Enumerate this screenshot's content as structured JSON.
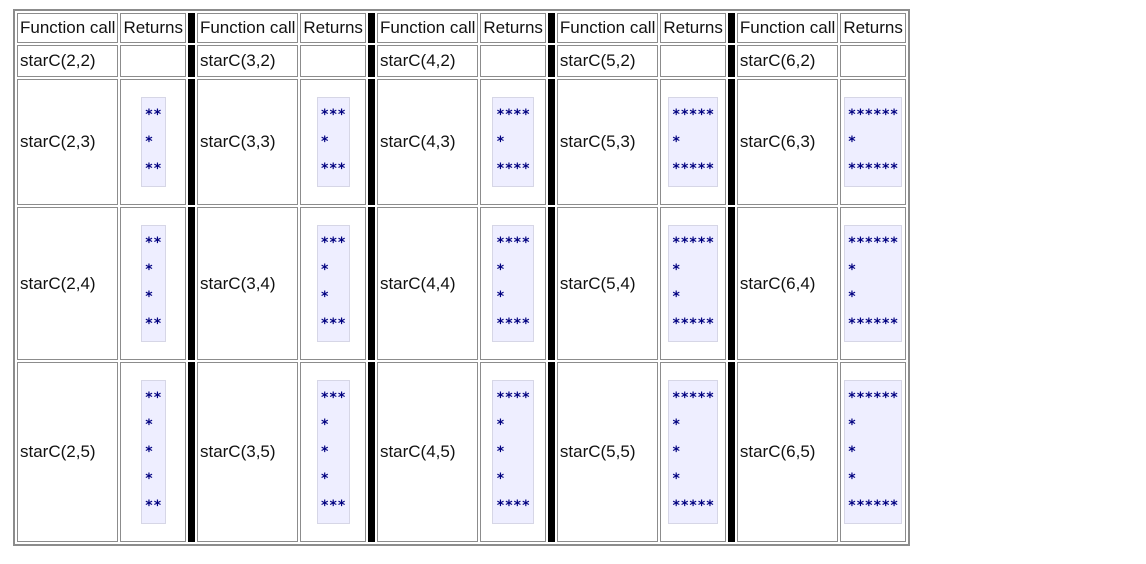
{
  "headers": {
    "function_call": "Function call",
    "returns": "Returns"
  },
  "groups": [
    {
      "rows": [
        {
          "call": "starC(2,2)",
          "returns": ""
        },
        {
          "call": "starC(2,3)",
          "returns": "**\n*\n**"
        },
        {
          "call": "starC(2,4)",
          "returns": "**\n*\n*\n**"
        },
        {
          "call": "starC(2,5)",
          "returns": "**\n*\n*\n*\n**"
        }
      ]
    },
    {
      "rows": [
        {
          "call": "starC(3,2)",
          "returns": ""
        },
        {
          "call": "starC(3,3)",
          "returns": "***\n*\n***"
        },
        {
          "call": "starC(3,4)",
          "returns": "***\n*\n*\n***"
        },
        {
          "call": "starC(3,5)",
          "returns": "***\n*\n*\n*\n***"
        }
      ]
    },
    {
      "rows": [
        {
          "call": "starC(4,2)",
          "returns": ""
        },
        {
          "call": "starC(4,3)",
          "returns": "****\n*\n****"
        },
        {
          "call": "starC(4,4)",
          "returns": "****\n*\n*\n****"
        },
        {
          "call": "starC(4,5)",
          "returns": "****\n*\n*\n*\n****"
        }
      ]
    },
    {
      "rows": [
        {
          "call": "starC(5,2)",
          "returns": ""
        },
        {
          "call": "starC(5,3)",
          "returns": "*****\n*\n*****"
        },
        {
          "call": "starC(5,4)",
          "returns": "*****\n*\n*\n*****"
        },
        {
          "call": "starC(5,5)",
          "returns": "*****\n*\n*\n*\n*****"
        }
      ]
    },
    {
      "rows": [
        {
          "call": "starC(6,2)",
          "returns": ""
        },
        {
          "call": "starC(6,3)",
          "returns": "******\n*\n******"
        },
        {
          "call": "starC(6,4)",
          "returns": "******\n*\n*\n******"
        },
        {
          "call": "starC(6,5)",
          "returns": "******\n*\n*\n*\n******"
        }
      ]
    }
  ],
  "colors": {
    "separator": "#000000",
    "code_background": "#eeeeff",
    "code_text": "#000080",
    "border": "#8c8c8c"
  }
}
